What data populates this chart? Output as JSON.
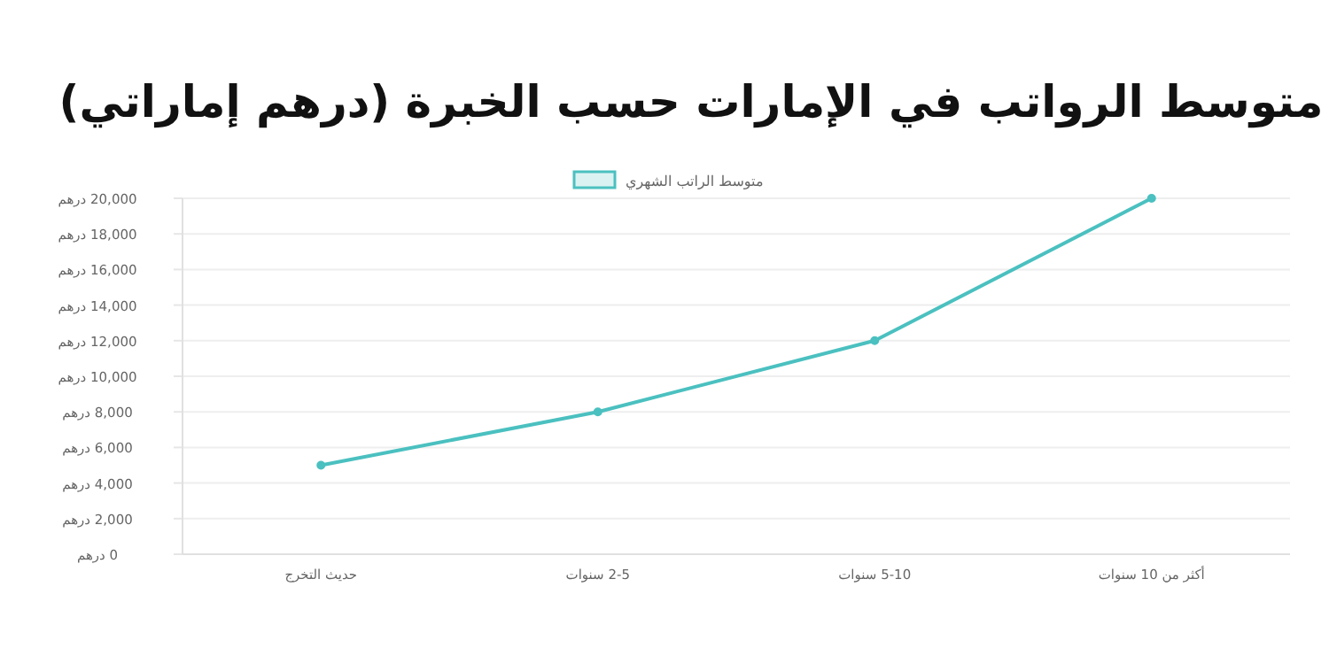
{
  "chart_data": {
    "type": "line",
    "title": "متوسط الرواتب في الإمارات حسب الخبرة (درهم إماراتي)",
    "categories": [
      "حديث التخرج",
      "2-5 سنوات",
      "5-10 سنوات",
      "أكثر من 10 سنوات"
    ],
    "series": [
      {
        "name": "متوسط الراتب الشهري",
        "color": "#4bc0c0",
        "values": [
          5000,
          8000,
          12000,
          20000
        ]
      }
    ],
    "ylim": [
      0,
      20000
    ],
    "yticks": [
      {
        "value": 0,
        "label": "0 درهم"
      },
      {
        "value": 2000,
        "label": "2,000 درهم"
      },
      {
        "value": 4000,
        "label": "4,000 درهم"
      },
      {
        "value": 6000,
        "label": "6,000 درهم"
      },
      {
        "value": 8000,
        "label": "8,000 درهم"
      },
      {
        "value": 10000,
        "label": "10,000 درهم"
      },
      {
        "value": 12000,
        "label": "12,000 درهم"
      },
      {
        "value": 14000,
        "label": "14,000 درهم"
      },
      {
        "value": 16000,
        "label": "16,000 درهم"
      },
      {
        "value": 18000,
        "label": "18,000 درهم"
      },
      {
        "value": 20000,
        "label": "20,000 درهم"
      }
    ],
    "grid": "y",
    "legend": "top",
    "marker": "circle",
    "line_style": "solid"
  }
}
